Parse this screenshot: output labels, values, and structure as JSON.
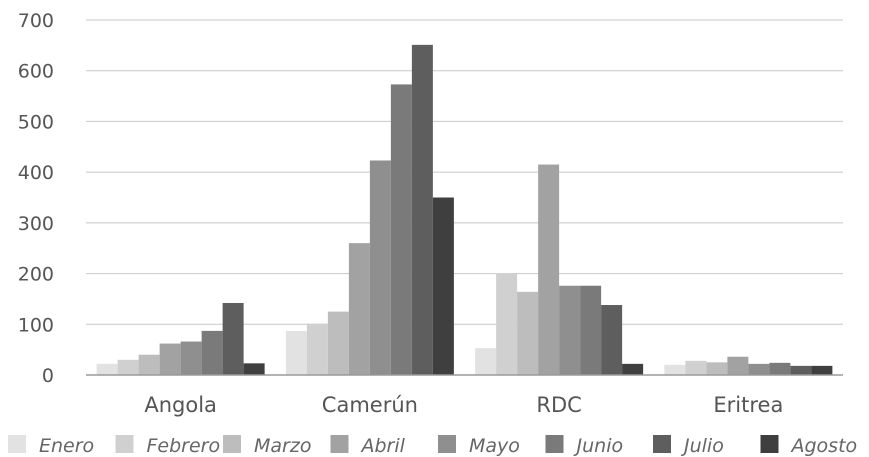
{
  "chart_data": {
    "type": "bar",
    "title": "",
    "xlabel": "",
    "ylabel": "",
    "categories": [
      "Angola",
      "Camerún",
      "RDC",
      "Eritrea"
    ],
    "ylim": [
      0,
      700
    ],
    "yticks": [
      0,
      100,
      200,
      300,
      400,
      500,
      600,
      700
    ],
    "grid": true,
    "legend_position": "bottom",
    "series": [
      {
        "name": "Enero",
        "color": "#e2e2e2",
        "values": [
          22,
          87,
          53,
          20
        ]
      },
      {
        "name": "Febrero",
        "color": "#d0d0d0",
        "values": [
          30,
          101,
          200,
          28
        ]
      },
      {
        "name": "Marzo",
        "color": "#bdbdbd",
        "values": [
          40,
          125,
          164,
          25
        ]
      },
      {
        "name": "Abril",
        "color": "#a2a2a2",
        "values": [
          62,
          260,
          415,
          36
        ]
      },
      {
        "name": "Mayo",
        "color": "#8f8f8f",
        "values": [
          66,
          423,
          176,
          22
        ]
      },
      {
        "name": "Junio",
        "color": "#7a7a7a",
        "values": [
          87,
          573,
          176,
          24
        ]
      },
      {
        "name": "Julio",
        "color": "#5e5e5e",
        "values": [
          142,
          651,
          138,
          18
        ]
      },
      {
        "name": "Agosto",
        "color": "#3f3f3f",
        "values": [
          23,
          350,
          22,
          18
        ]
      }
    ]
  }
}
